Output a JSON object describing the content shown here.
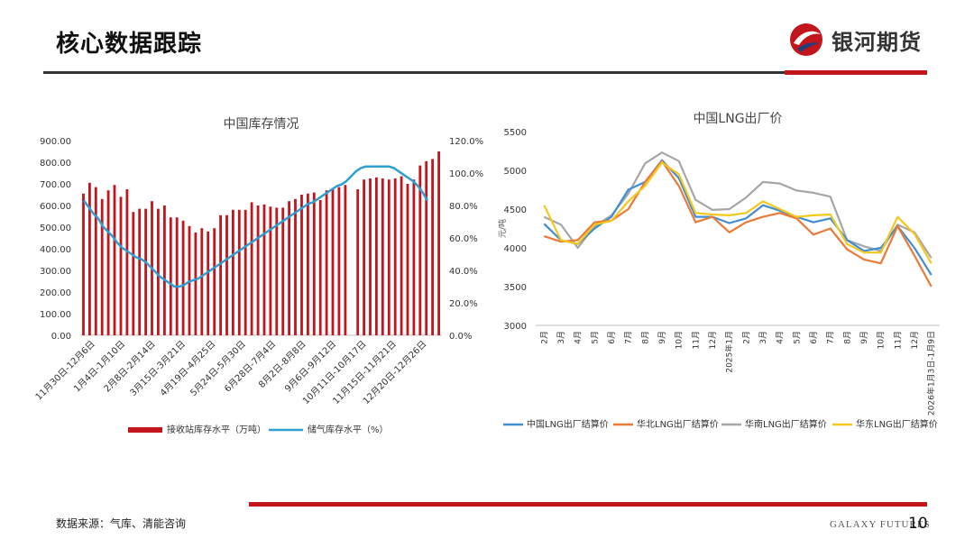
{
  "header": {
    "title": "核心数据跟踪",
    "brand_name": "银河期货"
  },
  "footer": {
    "source": "数据来源：气库、清能咨询",
    "brand_en": "GALAXY FUTURES",
    "page_number": "10"
  },
  "colors": {
    "accent_red": "#c3161c",
    "bar_red": "#c3161c",
    "line_blue": "#2e9fd2",
    "s_blue": "#3f8ed4",
    "s_orange": "#ea7a35",
    "s_gray": "#a6a6a6",
    "s_yellow": "#f6c71b"
  },
  "chart_data": [
    {
      "type": "bar",
      "title": "中国库存情况",
      "ylim": [
        0,
        900
      ],
      "y2lim": [
        0,
        120
      ],
      "yticks": [
        "0.00",
        "100.00",
        "200.00",
        "300.00",
        "400.00",
        "500.00",
        "600.00",
        "700.00",
        "800.00",
        "900.00"
      ],
      "y2ticks": [
        "0.0%",
        "20.0%",
        "40.0%",
        "60.0%",
        "80.0%",
        "100.0%",
        "120.0%"
      ],
      "xticks": [
        "11月30日-12月6日",
        "1月4日-1月10日",
        "2月8日-2月14日",
        "3月15日-3月21日",
        "4月19日-4月25日",
        "5月24日-5月30日",
        "6月28日-7月4日",
        "8月2日-8月8日",
        "9月6日-9月12日",
        "10月11日-10月17日",
        "11月15日-11月21日",
        "12月20日-12月26日"
      ],
      "series": [
        {
          "name": "接收站库存水平（万吨）",
          "kind": "bar",
          "values": [
            655,
            705,
            685,
            630,
            670,
            695,
            640,
            675,
            570,
            585,
            585,
            620,
            585,
            600,
            545,
            545,
            530,
            505,
            475,
            495,
            480,
            495,
            555,
            555,
            580,
            580,
            580,
            615,
            600,
            605,
            595,
            590,
            590,
            620,
            630,
            650,
            655,
            660,
            625,
            670,
            675,
            685,
            695,
            null,
            675,
            720,
            725,
            730,
            725,
            720,
            725,
            735,
            700,
            720,
            785,
            805,
            815,
            850
          ]
        },
        {
          "name": "储气库存水平（%）",
          "kind": "line",
          "values": [
            83,
            79,
            75,
            72,
            67,
            64,
            61,
            57,
            54,
            52,
            50,
            48,
            47,
            45,
            42,
            39,
            36,
            34,
            32,
            30,
            30,
            31,
            33,
            34,
            35,
            37,
            39,
            41,
            43,
            45,
            47,
            49,
            51,
            53,
            55,
            57,
            59,
            61,
            63,
            65,
            67,
            69,
            71,
            73,
            75,
            77,
            79,
            81,
            82,
            84,
            86,
            88,
            90,
            92,
            93,
            95,
            98,
            101,
            103,
            104,
            104,
            104,
            104,
            104,
            104,
            103,
            101,
            99,
            97,
            95,
            92,
            88,
            83
          ]
        }
      ]
    },
    {
      "type": "line",
      "title": "中国LNG出厂价",
      "ylabel": "元/吨",
      "ylim": [
        3000,
        5500
      ],
      "yticks": [
        "3000",
        "3500",
        "4000",
        "4500",
        "5000",
        "5500"
      ],
      "categories": [
        "2月",
        "3月",
        "4月",
        "5月",
        "6月",
        "7月",
        "8月",
        "9月",
        "10月",
        "11月",
        "12月",
        "2025年1月",
        "2月",
        "3月",
        "4月",
        "5月",
        "6月",
        "7月",
        "8月",
        "9月",
        "10月",
        "11月",
        "12月",
        "2026年1月3日-1月9日"
      ],
      "series": [
        {
          "name": "中国LNG出厂结算价",
          "values": [
            4310,
            4100,
            4050,
            4250,
            4400,
            4750,
            4850,
            5130,
            4900,
            4400,
            4400,
            4320,
            4380,
            4550,
            4480,
            4400,
            4330,
            4380,
            4100,
            3960,
            4000,
            4280,
            4000,
            3650
          ]
        },
        {
          "name": "华北LNG出厂结算价",
          "values": [
            4150,
            4080,
            4100,
            4330,
            4350,
            4500,
            4850,
            5120,
            4800,
            4330,
            4400,
            4200,
            4330,
            4400,
            4450,
            4380,
            4170,
            4250,
            3980,
            3850,
            3800,
            4280,
            3900,
            3500
          ]
        },
        {
          "name": "华南LNG出厂结算价",
          "values": [
            4400,
            4300,
            4000,
            4280,
            4420,
            4700,
            5090,
            5230,
            5120,
            4620,
            4490,
            4500,
            4650,
            4850,
            4830,
            4740,
            4710,
            4660,
            4100,
            4020,
            3960,
            4300,
            4200,
            3870
          ]
        },
        {
          "name": "华东LNG出厂结算价",
          "values": [
            4550,
            4100,
            4050,
            4300,
            4350,
            4600,
            4800,
            5100,
            4950,
            4450,
            4430,
            4420,
            4450,
            4600,
            4500,
            4400,
            4420,
            4430,
            4050,
            3940,
            3940,
            4400,
            4180,
            3800
          ]
        }
      ]
    }
  ]
}
